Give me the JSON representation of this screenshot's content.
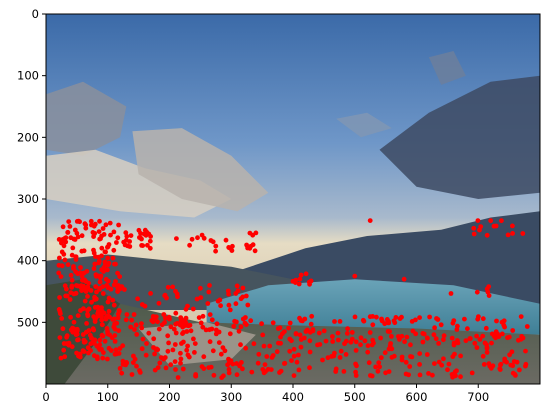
{
  "chart_data": {
    "type": "scatter",
    "background": "photograph of a mountain lake landscape at sunset (sky with clouds, mountains, turquoise lake, rocky foreground)",
    "x_ticks": [
      0,
      100,
      200,
      300,
      400,
      500,
      600,
      700
    ],
    "y_ticks": [
      0,
      100,
      200,
      300,
      400,
      500
    ],
    "xlim": [
      0,
      800
    ],
    "ylim": [
      600,
      0
    ],
    "y_inverted": true,
    "grid": false,
    "marker_color": "#ff0000",
    "colors": {
      "sky_top": "#3f6fae",
      "sky_mid": "#7ea3cf",
      "lake": "#4f8fa6",
      "mountain": "#3a4a5c",
      "ground": "#5a5c55"
    },
    "clusters": [
      {
        "x": [
          20,
          120
        ],
        "y": [
          335,
          560
        ],
        "n": 260
      },
      {
        "x": [
          120,
          175
        ],
        "y": [
          350,
          380
        ],
        "n": 25
      },
      {
        "x": [
          210,
          340
        ],
        "y": [
          355,
          385
        ],
        "n": 22
      },
      {
        "x": [
          395,
          430
        ],
        "y": [
          420,
          440
        ],
        "n": 10
      },
      {
        "x": [
          60,
          340
        ],
        "y": [
          440,
          520
        ],
        "n": 90
      },
      {
        "x": [
          100,
          780
        ],
        "y": [
          490,
          590
        ],
        "n": 420
      },
      {
        "x": [
          690,
          780
        ],
        "y": [
          335,
          360
        ],
        "n": 14
      },
      {
        "x": [
          640,
          720
        ],
        "y": [
          440,
          460
        ],
        "n": 6
      }
    ],
    "points": [
      [
        525,
        335
      ],
      [
        500,
        425
      ],
      [
        580,
        430
      ],
      [
        330,
        380
      ],
      [
        340,
        355
      ]
    ]
  }
}
